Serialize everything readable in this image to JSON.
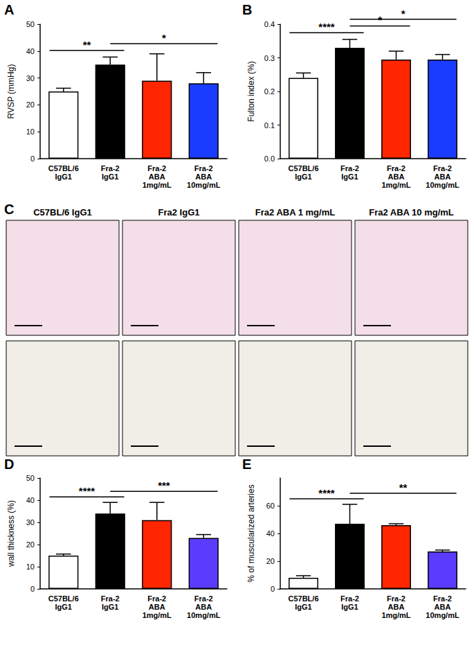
{
  "chart_data": [
    {
      "type": "bar",
      "title": "A",
      "ylabel": "RVSP (mmHg)",
      "categories": [
        "C57BL/6\nIgG1",
        "Fra-2\nIgG1",
        "Fra-2\nABA\n1mg/mL",
        "Fra-2\nABA\n10mg/mL"
      ],
      "values": [
        25,
        35,
        29,
        28
      ],
      "errors": [
        1.2,
        2.8,
        10,
        4
      ],
      "colors": [
        "#ffffff",
        "#000000",
        "#ff2600",
        "#1a3cff"
      ],
      "ylim": [
        0,
        50
      ],
      "yticks": [
        0,
        10,
        20,
        30,
        40,
        50
      ],
      "grid": false,
      "annotations": [
        {
          "text": "**",
          "between": [
            0,
            1
          ]
        },
        {
          "text": "*",
          "between": [
            1,
            3
          ]
        }
      ]
    },
    {
      "type": "bar",
      "title": "B",
      "ylabel": "Fulton index (%)",
      "categories": [
        "C57BL/6\nIgG1",
        "Fra-2\nIgG1",
        "Fra-2\nABA\n1mg/mL",
        "Fra-2\nABA\n10mg/mL"
      ],
      "values": [
        0.24,
        0.33,
        0.295,
        0.295
      ],
      "errors": [
        0.015,
        0.025,
        0.025,
        0.015
      ],
      "colors": [
        "#ffffff",
        "#000000",
        "#ff2600",
        "#1a3cff"
      ],
      "ylim": [
        0,
        0.4
      ],
      "yticks": [
        {
          "value": 0,
          "label": "0.0"
        },
        0.1,
        0.2,
        0.3,
        0.4
      ],
      "grid": false,
      "annotations": [
        {
          "text": "****",
          "between": [
            0,
            1
          ]
        },
        {
          "text": "*",
          "between": [
            1,
            2
          ]
        },
        {
          "text": "*",
          "between": [
            1,
            3
          ]
        }
      ]
    },
    {
      "type": "bar",
      "title": "D",
      "ylabel": "wall thickness (%)",
      "categories": [
        "C57BL/6\nIgG1",
        "Fra-2\nIgG1",
        "Fra-2\nABA\n1mg/mL",
        "Fra-2\nABA\n10mg/mL"
      ],
      "values": [
        15,
        34,
        31,
        23
      ],
      "errors": [
        0.7,
        5,
        8,
        1.5
      ],
      "colors": [
        "#ffffff",
        "#000000",
        "#ff2600",
        "#5b3cff"
      ],
      "ylim": [
        0,
        50
      ],
      "yticks": [
        0,
        10,
        20,
        30,
        40,
        50
      ],
      "grid": false,
      "annotations": [
        {
          "text": "****",
          "between": [
            0,
            1
          ]
        },
        {
          "text": "***",
          "between": [
            1,
            3
          ]
        }
      ]
    },
    {
      "type": "bar",
      "title": "E",
      "ylabel": "% of muscularized arteries",
      "categories": [
        "C57BL/6\nIgG1",
        "Fra-2\nIgG1",
        "Fra-2\nABA\n1mg/mL",
        "Fra-2\nABA\n10mg/mL"
      ],
      "values": [
        8,
        47,
        46,
        27
      ],
      "errors": [
        1.5,
        14,
        1,
        1
      ],
      "colors": [
        "#ffffff",
        "#000000",
        "#ff2600",
        "#5b3cff"
      ],
      "ylim": [
        0,
        80
      ],
      "yticks": [
        0,
        20,
        40,
        60
      ],
      "grid": false,
      "annotations": [
        {
          "text": "****",
          "between": [
            0,
            1
          ]
        },
        {
          "text": "**",
          "between": [
            1,
            3
          ]
        }
      ]
    }
  ],
  "micrograph_panel": {
    "title": "C",
    "columns": [
      "C57BL/6 IgG1",
      "Fra2 IgG1",
      "Fra2 ABA 1 mg/mL",
      "Fra2 ABA 10 mg/mL"
    ]
  }
}
